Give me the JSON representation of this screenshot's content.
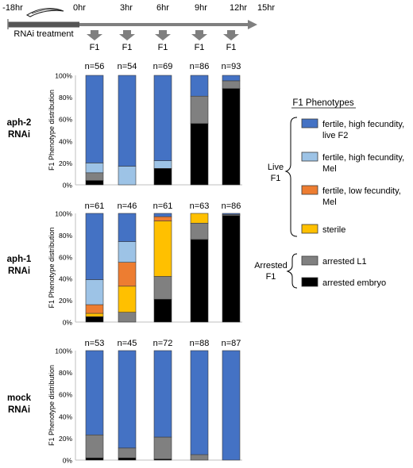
{
  "timeline": {
    "tick_labels": [
      "-18hr",
      "0hr",
      "3hr",
      "6hr",
      "9hr",
      "12hr",
      "15hr"
    ],
    "treatment_label": "RNAi treatment",
    "f1_labels": [
      "F1",
      "F1",
      "F1",
      "F1",
      "F1"
    ]
  },
  "colors": {
    "fertile_high_live": "#4472c4",
    "fertile_high_mel": "#9dc3e6",
    "fertile_low_mel": "#ed7d31",
    "sterile": "#ffc000",
    "arrested_l1": "#808080",
    "arrested_embryo": "#000000",
    "timeline_gray": "#7f7f7f"
  },
  "legend": {
    "title": "F1 Phenotypes",
    "group_live": "Live\nF1",
    "group_arrested": "Arrested\nF1",
    "items": [
      {
        "key": "fertile_high_live",
        "label": "fertile, high fecundity,\nlive F2"
      },
      {
        "key": "fertile_high_mel",
        "label": "fertile, high fecundity,\nMel"
      },
      {
        "key": "fertile_low_mel",
        "label": "fertile, low fecundity,\nMel"
      },
      {
        "key": "sterile",
        "label": "sterile"
      },
      {
        "key": "arrested_l1",
        "label": "arrested L1"
      },
      {
        "key": "arrested_embryo",
        "label": "arrested embryo"
      }
    ]
  },
  "chart_data": [
    {
      "type": "bar",
      "stacked": true,
      "panel_label": "aph-2\nRNAi",
      "ylabel": "F1 Phenotype distribution",
      "ylim": [
        0,
        100
      ],
      "yticks": [
        "0%",
        "20%",
        "40%",
        "60%",
        "80%",
        "100%"
      ],
      "n_labels": [
        "n=56",
        "n=54",
        "n=69",
        "n=86",
        "n=93"
      ],
      "series": [
        {
          "name": "arrested embryo",
          "key": "arrested_embryo",
          "values": [
            4,
            0,
            15,
            56,
            88
          ]
        },
        {
          "name": "arrested L1",
          "key": "arrested_l1",
          "values": [
            7,
            0,
            0,
            25,
            7
          ]
        },
        {
          "name": "sterile",
          "key": "sterile",
          "values": [
            0,
            0,
            0,
            0,
            0
          ]
        },
        {
          "name": "fertile, low fecundity, Mel",
          "key": "fertile_low_mel",
          "values": [
            0,
            0,
            0,
            0,
            0
          ]
        },
        {
          "name": "fertile, high fecundity, Mel",
          "key": "fertile_high_mel",
          "values": [
            9,
            17,
            7,
            0,
            0
          ]
        },
        {
          "name": "fertile, high fecundity, live F2",
          "key": "fertile_high_live",
          "values": [
            80,
            83,
            78,
            19,
            5
          ]
        }
      ]
    },
    {
      "type": "bar",
      "stacked": true,
      "panel_label": "aph-1\nRNAi",
      "ylabel": "F1 Phenotype distribution",
      "ylim": [
        0,
        100
      ],
      "yticks": [
        "0%",
        "20%",
        "40%",
        "60%",
        "80%",
        "100%"
      ],
      "n_labels": [
        "n=61",
        "n=46",
        "n=61",
        "n=63",
        "n=86"
      ],
      "series": [
        {
          "name": "arrested embryo",
          "key": "arrested_embryo",
          "values": [
            5,
            0,
            21,
            76,
            98
          ]
        },
        {
          "name": "arrested L1",
          "key": "arrested_l1",
          "values": [
            0,
            9,
            21,
            15,
            1
          ]
        },
        {
          "name": "sterile",
          "key": "sterile",
          "values": [
            3,
            24,
            51,
            9,
            0
          ]
        },
        {
          "name": "fertile, low fecundity, Mel",
          "key": "fertile_low_mel",
          "values": [
            8,
            22,
            4,
            0,
            0
          ]
        },
        {
          "name": "fertile, high fecundity, Mel",
          "key": "fertile_high_mel",
          "values": [
            23,
            19,
            0,
            0,
            0
          ]
        },
        {
          "name": "fertile, high fecundity, live F2",
          "key": "fertile_high_live",
          "values": [
            61,
            26,
            3,
            0,
            1
          ]
        }
      ]
    },
    {
      "type": "bar",
      "stacked": true,
      "panel_label": "mock\nRNAi",
      "ylabel": "F1 Phenotype distribution",
      "ylim": [
        0,
        100
      ],
      "yticks": [
        "0%",
        "20%",
        "40%",
        "60%",
        "80%",
        "100%"
      ],
      "n_labels": [
        "n=53",
        "n=45",
        "n=72",
        "n=88",
        "n=87"
      ],
      "series": [
        {
          "name": "arrested embryo",
          "key": "arrested_embryo",
          "values": [
            2,
            2,
            1,
            0,
            0
          ]
        },
        {
          "name": "arrested L1",
          "key": "arrested_l1",
          "values": [
            21,
            9,
            20,
            5,
            0
          ]
        },
        {
          "name": "sterile",
          "key": "sterile",
          "values": [
            0,
            0,
            0,
            0,
            0
          ]
        },
        {
          "name": "fertile, low fecundity, Mel",
          "key": "fertile_low_mel",
          "values": [
            0,
            0,
            0,
            0,
            0
          ]
        },
        {
          "name": "fertile, high fecundity, Mel",
          "key": "fertile_high_mel",
          "values": [
            0,
            0,
            0,
            0,
            0
          ]
        },
        {
          "name": "fertile, high fecundity, live F2",
          "key": "fertile_high_live",
          "values": [
            77,
            89,
            79,
            95,
            100
          ]
        }
      ]
    }
  ]
}
